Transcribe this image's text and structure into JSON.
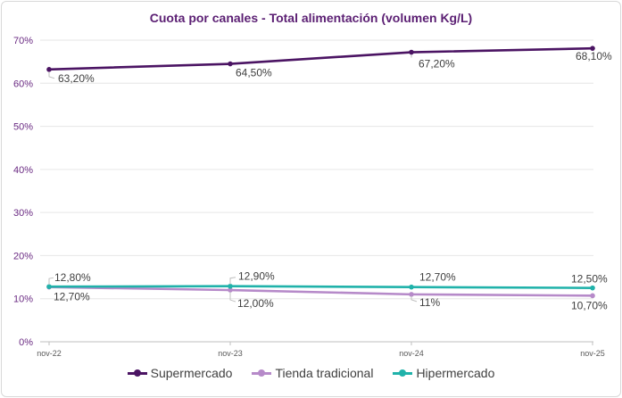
{
  "chart_data": {
    "type": "line",
    "title": "Cuota por canales - Total alimentación (volumen Kg/L)",
    "categories": [
      "nov-22",
      "nov-23",
      "nov-24",
      "nov-25"
    ],
    "ylim": [
      0,
      70
    ],
    "yticks": [
      0,
      10,
      20,
      30,
      40,
      50,
      60,
      70
    ],
    "ytick_labels": [
      "0%",
      "10%",
      "20%",
      "30%",
      "40%",
      "50%",
      "60%",
      "70%"
    ],
    "grid": true,
    "legend": "bottom",
    "series": [
      {
        "name": "Supermercado",
        "color": "#4b1463",
        "values": [
          63.2,
          64.5,
          67.2,
          68.1
        ],
        "labels": [
          "63,20%",
          "64,50%",
          "67,20%",
          "68,10%"
        ],
        "label_pos": "below"
      },
      {
        "name": "Tienda tradicional",
        "color": "#b68ac9",
        "values": [
          12.7,
          12.0,
          11.0,
          10.7
        ],
        "labels": [
          "12,70%",
          "12,00%",
          "11%",
          "10,70%"
        ],
        "label_pos": "below"
      },
      {
        "name": "Hipermercado",
        "color": "#20b2aa",
        "values": [
          12.8,
          12.9,
          12.7,
          12.5
        ],
        "labels": [
          "12,80%",
          "12,90%",
          "12,70%",
          "12,50%"
        ],
        "label_pos": "above"
      }
    ]
  }
}
